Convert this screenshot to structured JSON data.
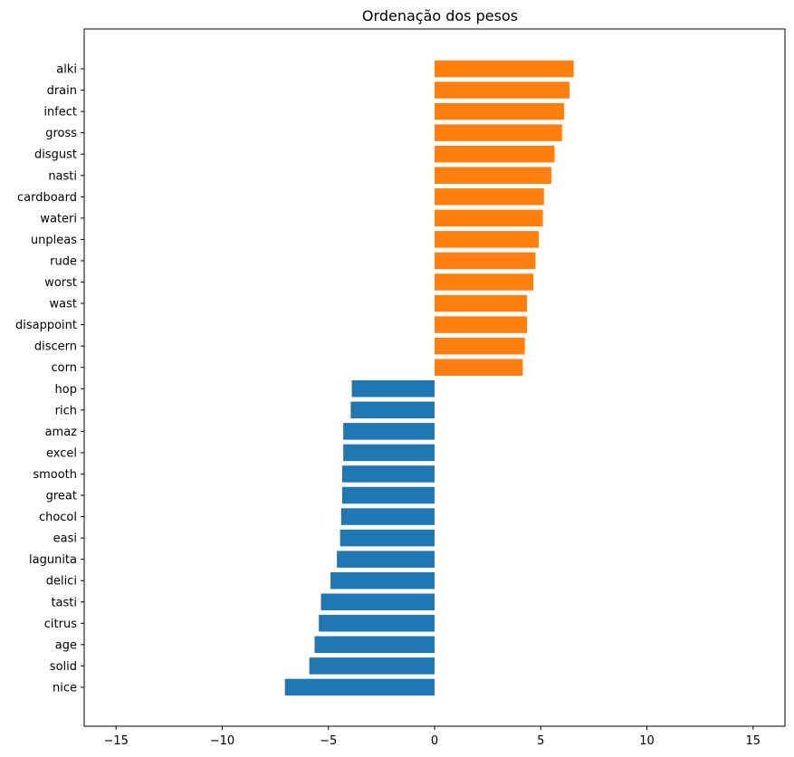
{
  "chart_data": {
    "type": "bar",
    "orientation": "horizontal",
    "title": "Ordenação dos pesos",
    "xlabel": "",
    "ylabel": "",
    "xlim": [
      -16.5,
      16.5
    ],
    "xticks": [
      -15,
      -10,
      -5,
      0,
      5,
      10,
      15
    ],
    "xtick_labels": [
      "−15",
      "−10",
      "−5",
      "0",
      "5",
      "10",
      "15"
    ],
    "grid": false,
    "legend": "none",
    "colors": {
      "positive": "#ff7f0e",
      "negative": "#1f77b4"
    },
    "categories": [
      "alki",
      "drain",
      "infect",
      "gross",
      "disgust",
      "nasti",
      "cardboard",
      "wateri",
      "unpleas",
      "rude",
      "worst",
      "wast",
      "disappoint",
      "discern",
      "corn",
      "hop",
      "rich",
      "amaz",
      "excel",
      "smooth",
      "great",
      "chocol",
      "easi",
      "lagunita",
      "delici",
      "tasti",
      "citrus",
      "age",
      "solid",
      "nice"
    ],
    "values": [
      6.55,
      6.35,
      6.1,
      6.0,
      5.65,
      5.5,
      5.15,
      5.1,
      4.9,
      4.75,
      4.65,
      4.35,
      4.35,
      4.25,
      4.15,
      -3.9,
      -3.95,
      -4.3,
      -4.3,
      -4.35,
      -4.35,
      -4.4,
      -4.45,
      -4.6,
      -4.9,
      -5.35,
      -5.45,
      -5.65,
      -5.9,
      -7.05
    ]
  }
}
